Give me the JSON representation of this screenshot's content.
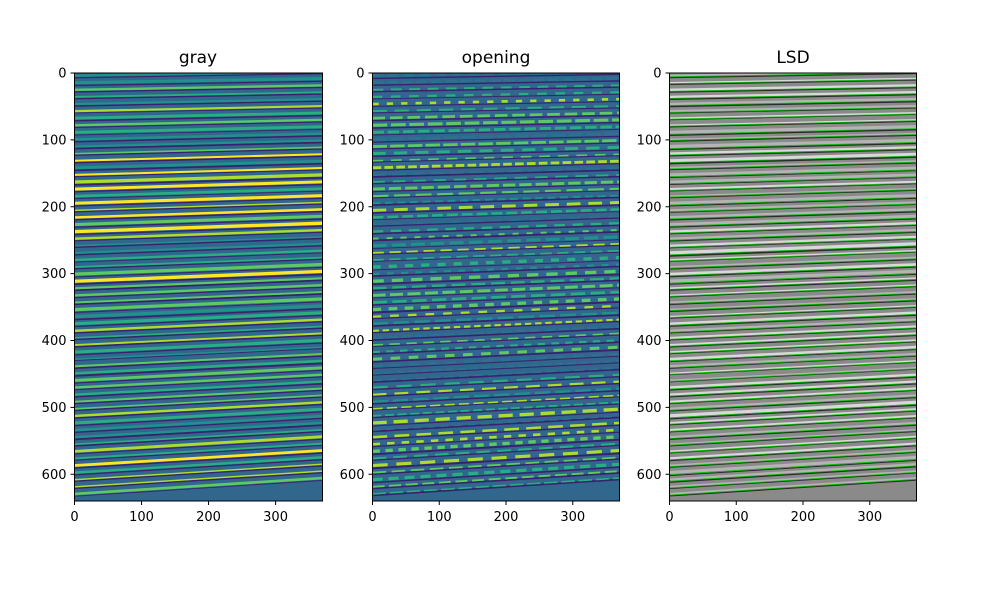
{
  "chart_data": [
    {
      "type": "heatmap",
      "title": "gray",
      "colormap": "viridis",
      "image_size": [
        370,
        640
      ],
      "xlim": [
        0,
        370
      ],
      "ylim": [
        640,
        0
      ],
      "x_ticks": [
        0,
        100,
        200,
        300
      ],
      "y_ticks": [
        0,
        100,
        200,
        300,
        400,
        500,
        600
      ],
      "x_tick_labels": [
        "0",
        "100",
        "200",
        "300"
      ],
      "y_tick_labels": [
        "0",
        "100",
        "200",
        "300",
        "400",
        "500",
        "600"
      ],
      "grid": false,
      "description_of_content": "near-horizontal stripes, slightly tilted"
    },
    {
      "type": "heatmap",
      "title": "opening",
      "colormap": "viridis",
      "image_size": [
        370,
        640
      ],
      "xlim": [
        0,
        370
      ],
      "ylim": [
        640,
        0
      ],
      "x_ticks": [
        0,
        100,
        200,
        300
      ],
      "y_ticks": [
        0,
        100,
        200,
        300,
        400,
        500,
        600
      ],
      "x_tick_labels": [
        "0",
        "100",
        "200",
        "300"
      ],
      "y_tick_labels": [
        "0",
        "100",
        "200",
        "300",
        "400",
        "500",
        "600"
      ],
      "grid": false
    },
    {
      "type": "heatmap",
      "title": "LSD",
      "colormap": "gray-with-green-lines",
      "image_size": [
        370,
        640
      ],
      "xlim": [
        0,
        370
      ],
      "ylim": [
        640,
        0
      ],
      "x_ticks": [
        0,
        100,
        200,
        300
      ],
      "y_ticks": [
        0,
        100,
        200,
        300,
        400,
        500,
        600
      ],
      "x_tick_labels": [
        "0",
        "100",
        "200",
        "300"
      ],
      "y_tick_labels": [
        "0",
        "100",
        "200",
        "300",
        "400",
        "500",
        "600"
      ],
      "grid": false,
      "line_color": "#00c000"
    }
  ]
}
